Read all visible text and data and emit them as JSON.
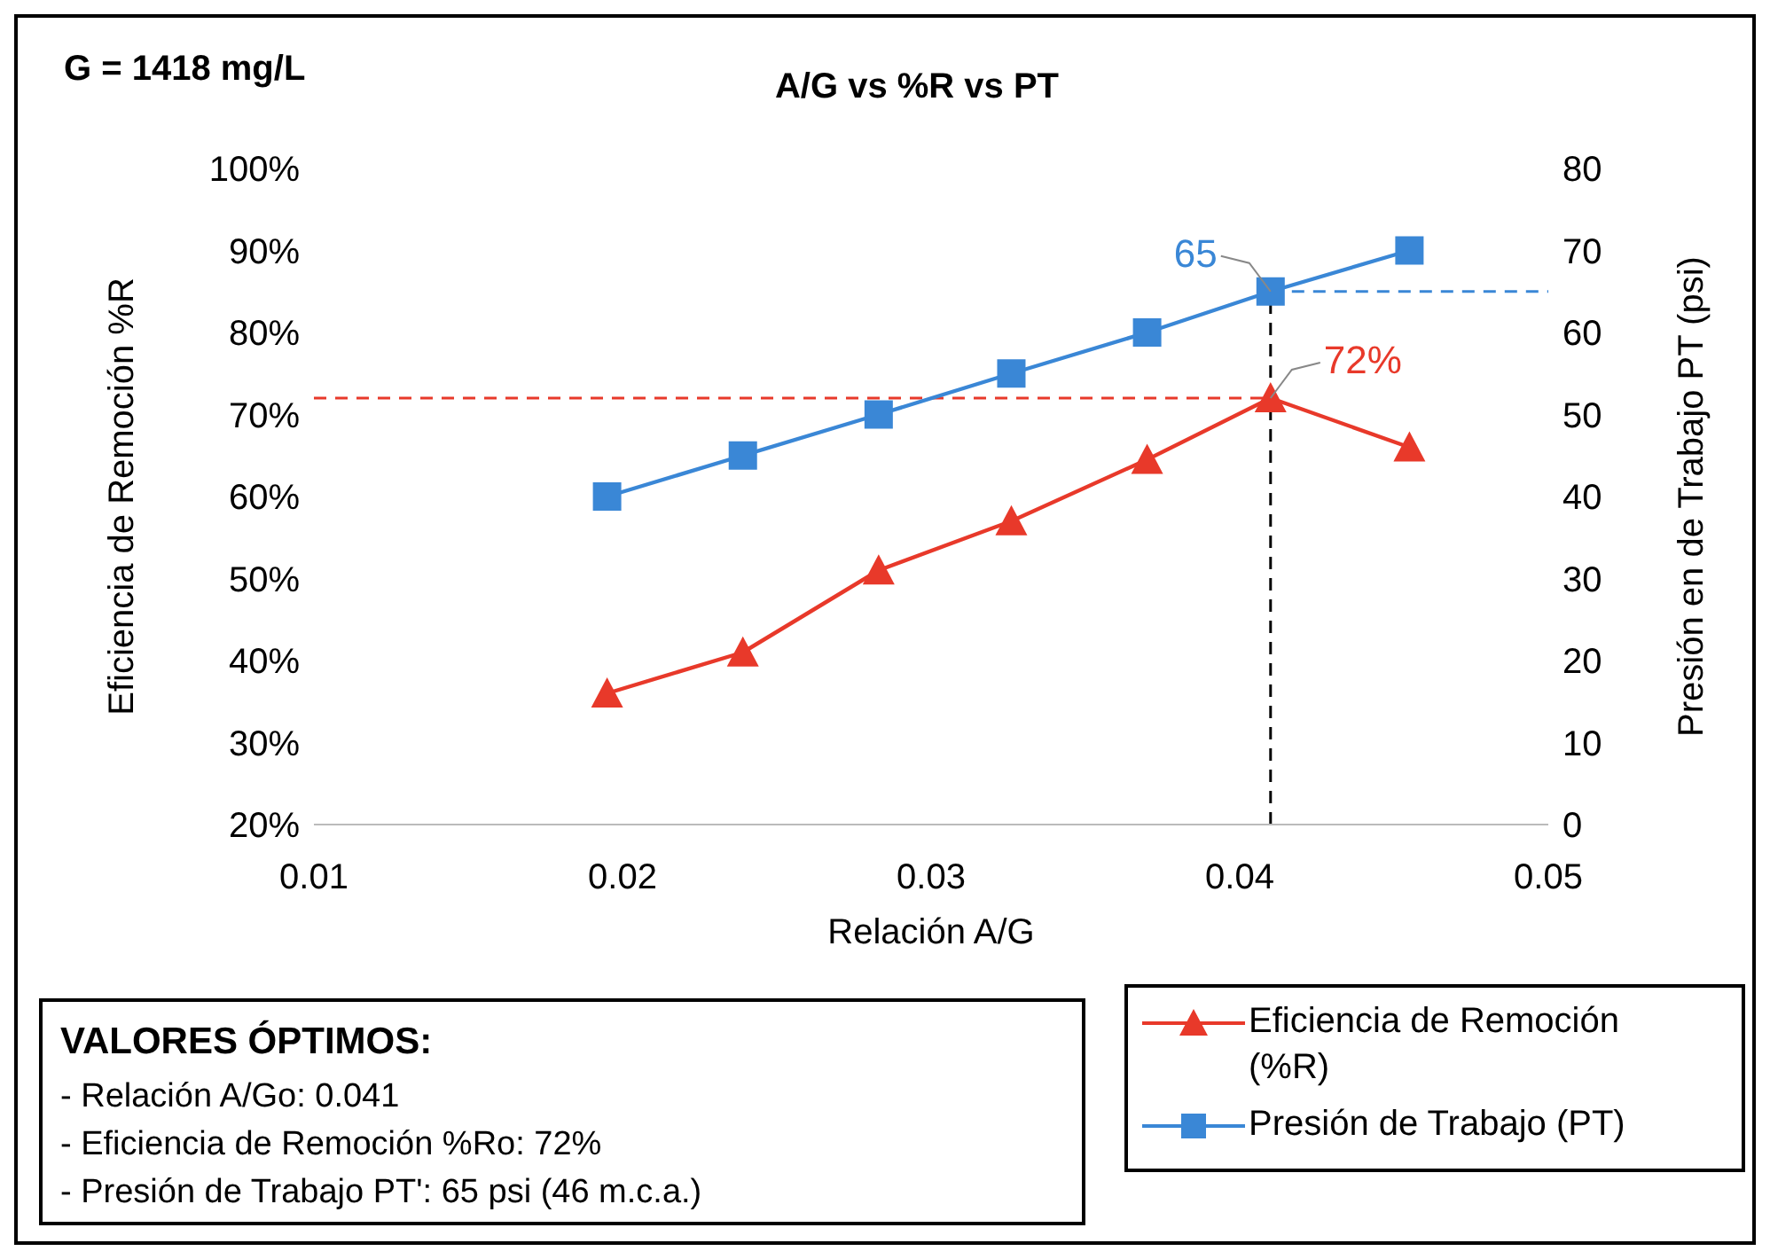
{
  "chart_data": {
    "type": "line",
    "title": "A/G vs %R vs PT",
    "xlabel": "Relación A/G",
    "ylabel": "Eficiencia de Remoción %R",
    "y2label": "Presión en de Trabajo  PT (psi)",
    "x": [
      0.0195,
      0.0239,
      0.0283,
      0.0326,
      0.037,
      0.041,
      0.0455
    ],
    "series": [
      {
        "name": "Eficiencia de Remoción (%R)",
        "color": "#e8392a",
        "marker": "triangle",
        "values": [
          36,
          41,
          51,
          57,
          64.5,
          72,
          66
        ]
      },
      {
        "name": "Presión de Trabajo (PT)",
        "color": "#3a87d6",
        "marker": "square",
        "axis": "y2",
        "values": [
          40,
          45,
          50,
          55,
          60,
          65,
          70
        ]
      }
    ],
    "xlim": [
      0.01,
      0.05
    ],
    "xticks": [
      0.01,
      0.02,
      0.03,
      0.04,
      0.05
    ],
    "ylim": [
      20,
      100
    ],
    "yticks": [
      {
        "value": 20,
        "label": "20%"
      },
      {
        "value": 30,
        "label": "30%"
      },
      {
        "value": 40,
        "label": "40%"
      },
      {
        "value": 50,
        "label": "50%"
      },
      {
        "value": 60,
        "label": "60%"
      },
      {
        "value": 70,
        "label": "70%"
      },
      {
        "value": 80,
        "label": "80%"
      },
      {
        "value": 90,
        "label": "90%"
      },
      {
        "value": 100,
        "label": "100%"
      }
    ],
    "y2lim": [
      0,
      80
    ],
    "y2ticks": [
      0,
      10,
      20,
      30,
      40,
      50,
      60,
      70,
      80
    ],
    "ref_lines": [
      {
        "axis": "y",
        "value": 72,
        "color": "#e8392a",
        "line_style": "dashed"
      },
      {
        "axis": "y2",
        "value": 65,
        "color": "#3a87d6",
        "line_style": "dashed"
      },
      {
        "axis": "x",
        "value": 0.041,
        "color": "#000000",
        "line_style": "dashed"
      }
    ],
    "annotations": [
      "G = 1418 mg/L",
      "65",
      {
        "text": "72%",
        "x": 0.041,
        "y": 72
      },
      "VALORES ÓPTIMOS:",
      "- Relación A/Go: 0.041",
      "- Eficiencia de Remoción %Ro: 72%",
      "- Presión de Trabajo PT': 65 psi (46 m.c.a.)"
    ],
    "legend": "bottom right"
  }
}
